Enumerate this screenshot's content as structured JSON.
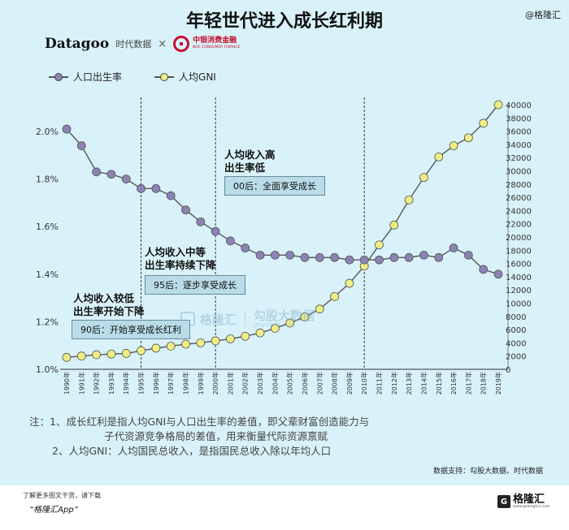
{
  "title": "年轻世代进入成长红利期",
  "credit_top": "@格隆汇",
  "logos": {
    "datagoo": "Datagoo",
    "datagoo_cn": "时代数据",
    "times": "×",
    "boc_cn": "中银消费金融",
    "boc_en": "BOC CONSUMER FINANCE"
  },
  "legend": {
    "birth_rate": "人口出生率",
    "gni": "人均GNI"
  },
  "annotations": {
    "a90_line1": "人均收入较低",
    "a90_line2": "出生率开始下降",
    "a90_box": "90后：开始享受成长红利",
    "a95_line1": "人均收入中等",
    "a95_line2": "出生率持续下降",
    "a95_box": "95后：逐步享受成长",
    "a00_line1": "人均收入高",
    "a00_line2": "出生率低",
    "a00_box": "00后：全面享受成长"
  },
  "watermark": {
    "cn": "格隆汇",
    "cn2": "勾股大数据",
    "en": "gogudata.com"
  },
  "notes": {
    "line1": "注：1、成长红利是指人均GNI与人口出生率的差值，即父辈财富创造能力与",
    "line2": "子代资源竞争格局的差值，用来衡量代际资源禀赋",
    "line3": "2、人均GNI：人均国民总收入，是指国民总收入除以年均人口"
  },
  "source": "数据支持：勾股大数据、时代数据",
  "footer": {
    "line1": "了解更多图文干货，请下载",
    "line2": "“格隆汇App”",
    "logo_cn": "格隆汇",
    "logo_mark": "G",
    "logo_en": "www.gelonghui.com"
  },
  "colors": {
    "background": "#d9f2fa",
    "birth_rate_dot": "#8b83b3",
    "gni_dot": "#eeee84",
    "line": "#555555"
  },
  "chart_data": {
    "type": "line",
    "title": "年轻世代进入成长红利期",
    "categories": [
      "1990年",
      "1991年",
      "1992年",
      "1993年",
      "1994年",
      "1995年",
      "1996年",
      "1997年",
      "1998年",
      "1999年",
      "2000年",
      "2001年",
      "2002年",
      "2003年",
      "2004年",
      "2005年",
      "2006年",
      "2007年",
      "2008年",
      "2009年",
      "2010年",
      "2011年",
      "2012年",
      "2013年",
      "2014年",
      "2015年",
      "2016年",
      "2017年",
      "2018年",
      "2019年"
    ],
    "x_labels_shown": [
      "1990年",
      "1991年",
      "1992年",
      "1993年",
      "1994年",
      "1995年",
      "1996年",
      "1997年",
      "1998年",
      "1999年",
      "2000年",
      "2001年",
      "2002年",
      "2003年",
      "2004年",
      "2005年",
      "2006年",
      "2007年",
      "2008年",
      "2009年",
      "2010年",
      "2011年",
      "2012年",
      "2013年",
      "2014年",
      "2015年",
      "2016年",
      "2017年",
      "2018年",
      "2019年"
    ],
    "series": [
      {
        "name": "人口出生率",
        "axis": "left",
        "values": [
          2.01,
          1.94,
          1.83,
          1.82,
          1.8,
          1.76,
          1.76,
          1.73,
          1.67,
          1.62,
          1.58,
          1.54,
          1.51,
          1.48,
          1.48,
          1.48,
          1.47,
          1.47,
          1.47,
          1.46,
          1.46,
          1.46,
          1.47,
          1.47,
          1.48,
          1.47,
          1.51,
          1.48,
          1.42,
          1.4
        ]
      },
      {
        "name": "人均GNI",
        "axis": "right",
        "values": [
          1800,
          2000,
          2200,
          2300,
          2400,
          2800,
          3200,
          3500,
          3800,
          4000,
          4300,
          4600,
          5000,
          5500,
          6200,
          7000,
          7900,
          9100,
          11000,
          13000,
          15600,
          18800,
          21800,
          25600,
          29000,
          32100,
          33800,
          35000,
          37200,
          40000
        ]
      }
    ],
    "y_left": {
      "ticks": [
        "1.0%",
        "1.2%",
        "1.4%",
        "1.6%",
        "1.8%",
        "2.0%"
      ],
      "range": [
        1.0,
        2.1
      ]
    },
    "y_right": {
      "ticks": [
        "0",
        "2000",
        "4000",
        "6000",
        "8000",
        "10000",
        "12000",
        "14000",
        "16000",
        "18000",
        "20000",
        "22000",
        "24000",
        "26000",
        "28000",
        "30000",
        "32000",
        "34000",
        "36000",
        "38000",
        "40000"
      ],
      "range": [
        0,
        40000
      ]
    }
  }
}
